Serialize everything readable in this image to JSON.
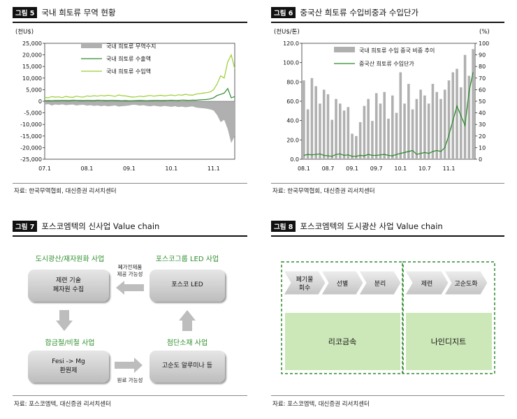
{
  "fig5": {
    "tag": "그림 5",
    "title": "국내 희토류 무역 현황",
    "unit": "(천U$)",
    "source": "자료: 한국무역협회, 대신증권 리서치센터",
    "colors": {
      "balance": "#b0b0b0",
      "export": "#2e8b2e",
      "import": "#9acd32"
    },
    "chart_data": {
      "type": "line",
      "ylim": [
        -25000,
        25000
      ],
      "yticks": [
        "25,000",
        "20,000",
        "15,000",
        "10,000",
        "5,000",
        "0",
        "-5,000",
        "-10,000",
        "-15,000",
        "-20,000",
        "-25,000"
      ],
      "xticks": [
        "07.1",
        "08.1",
        "09.1",
        "10.1",
        "11.1"
      ],
      "x": [
        "07.1",
        "07.2",
        "07.3",
        "07.4",
        "07.5",
        "07.6",
        "07.7",
        "07.8",
        "07.9",
        "07.10",
        "07.11",
        "07.12",
        "08.1",
        "08.2",
        "08.3",
        "08.4",
        "08.5",
        "08.6",
        "08.7",
        "08.8",
        "08.9",
        "08.10",
        "08.11",
        "08.12",
        "09.1",
        "09.2",
        "09.3",
        "09.4",
        "09.5",
        "09.6",
        "09.7",
        "09.8",
        "09.9",
        "09.10",
        "09.11",
        "09.12",
        "10.1",
        "10.2",
        "10.3",
        "10.4",
        "10.5",
        "10.6",
        "10.7",
        "10.8",
        "10.9",
        "10.10",
        "10.11",
        "10.12",
        "11.1",
        "11.2",
        "11.3",
        "11.4",
        "11.5",
        "11.6",
        "11.7"
      ],
      "series": [
        {
          "name": "국내 희토류 무역수지",
          "kind": "area",
          "values": [
            -1500,
            -1200,
            -1800,
            -1400,
            -1600,
            -1300,
            -1700,
            -1500,
            -1400,
            -1800,
            -1600,
            -1500,
            -1900,
            -1700,
            -2000,
            -1800,
            -2100,
            -1900,
            -2200,
            -2000,
            -1800,
            -2300,
            -2100,
            -2000,
            -1800,
            -1500,
            -1600,
            -1900,
            -1700,
            -2000,
            -2200,
            -1900,
            -2100,
            -2300,
            -2000,
            -2200,
            -2400,
            -2100,
            -2500,
            -2300,
            -2600,
            -2400,
            -2200,
            -2700,
            -2900,
            -3000,
            -3200,
            -3500,
            -4000,
            -6000,
            -9000,
            -8000,
            -12000,
            -18000,
            -15000
          ]
        },
        {
          "name": "국내 희토류 수출액",
          "kind": "line",
          "values": [
            200,
            300,
            250,
            350,
            300,
            400,
            350,
            300,
            450,
            400,
            350,
            300,
            400,
            350,
            300,
            450,
            400,
            350,
            300,
            400,
            350,
            300,
            250,
            300,
            200,
            250,
            300,
            350,
            300,
            250,
            300,
            350,
            400,
            300,
            350,
            400,
            450,
            400,
            350,
            500,
            450,
            400,
            500,
            450,
            600,
            700,
            800,
            1000,
            1500,
            2500,
            3000,
            3500,
            5500,
            1500,
            2000
          ]
        },
        {
          "name": "국내 희토류 수입액",
          "kind": "line",
          "values": [
            1700,
            1500,
            2000,
            1800,
            1900,
            1600,
            2100,
            1800,
            1700,
            2200,
            1900,
            1800,
            2300,
            2100,
            2400,
            2200,
            2500,
            2300,
            2600,
            2400,
            2100,
            2700,
            2400,
            2300,
            2000,
            1800,
            1900,
            2200,
            2000,
            2300,
            2500,
            2200,
            2400,
            2600,
            2300,
            2500,
            2700,
            2400,
            2800,
            2600,
            3000,
            2700,
            2600,
            3100,
            3300,
            3500,
            3700,
            4000,
            5000,
            7500,
            11000,
            10000,
            17000,
            20000,
            14000
          ]
        }
      ]
    }
  },
  "fig6": {
    "tag": "그림 6",
    "title": "중국산 희토류 수입비중과 수입단가",
    "unit_left": "(천U$/톤)",
    "unit_right": "(%)",
    "source": "자료: 한국무역협회, 대신증권 리서치센터",
    "colors": {
      "share": "#b0b0b0",
      "price": "#2e8b2e"
    },
    "chart_data": {
      "type": "bar",
      "ylim_left": [
        0,
        120
      ],
      "ylim_right": [
        0,
        100
      ],
      "yticks_left": [
        "120.0",
        "100.0",
        "80.0",
        "60.0",
        "40.0",
        "20.0",
        "0.0"
      ],
      "yticks_right": [
        "100",
        "90",
        "80",
        "70",
        "60",
        "50",
        "40",
        "30",
        "20",
        "10",
        "0"
      ],
      "xticks": [
        "08.1",
        "08.7",
        "09.1",
        "09.7",
        "10.1",
        "10.7",
        "11.1"
      ],
      "x": [
        "08.1",
        "08.2",
        "08.3",
        "08.4",
        "08.5",
        "08.6",
        "08.7",
        "08.8",
        "08.9",
        "08.10",
        "08.11",
        "08.12",
        "09.1",
        "09.2",
        "09.3",
        "09.4",
        "09.5",
        "09.6",
        "09.7",
        "09.8",
        "09.9",
        "09.10",
        "09.11",
        "09.12",
        "10.1",
        "10.2",
        "10.3",
        "10.4",
        "10.5",
        "10.6",
        "10.7",
        "10.8",
        "10.9",
        "10.10",
        "10.11",
        "10.12",
        "11.1",
        "11.2",
        "11.3",
        "11.4",
        "11.5",
        "11.6",
        "11.7"
      ],
      "series": [
        {
          "name": "국내 희토류 수입 중국 비중 추이",
          "axis": "right",
          "values": [
            68,
            43,
            70,
            63,
            48,
            60,
            56,
            34,
            52,
            48,
            42,
            45,
            22,
            20,
            32,
            46,
            52,
            33,
            57,
            48,
            58,
            35,
            55,
            40,
            75,
            48,
            65,
            43,
            52,
            60,
            55,
            48,
            65,
            58,
            52,
            60,
            68,
            75,
            78,
            62,
            90,
            72,
            95
          ]
        },
        {
          "name": "중국산 희토류 수입단가",
          "axis": "left",
          "values": [
            4,
            5,
            4.5,
            5,
            5.5,
            4,
            3.5,
            3,
            5,
            5.5,
            4,
            4.5,
            3,
            3,
            4,
            3.5,
            5,
            4,
            4,
            4.5,
            5,
            4,
            3.5,
            5,
            6,
            7,
            8,
            9,
            5,
            6,
            7,
            6,
            8,
            9,
            8,
            12,
            25,
            40,
            55,
            45,
            35,
            70,
            90
          ]
        }
      ]
    }
  },
  "fig7": {
    "tag": "그림 7",
    "title": "포스코엠텍의 신사업 Value chain",
    "source": "자료: 포스코엠텍, 대신증권 리서치센터",
    "heads": {
      "top_left": "도시광산/재자원화 사업",
      "top_right": "포스코그룹 LED 사업",
      "bottom_left": "합금철/비철 사업",
      "bottom_right": "첨단소재 사업"
    },
    "boxes": {
      "top_left_line1": "제련 기술",
      "top_left_line2": "폐자원 수집",
      "top_right": "포스코 LED",
      "bottom_left_line1": "Fesi -> Mg",
      "bottom_left_line2": "환원제",
      "bottom_right": "고순도 알루미나 등"
    },
    "notes": {
      "top_line1": "폐가전제품",
      "top_line2": "제공 가능성",
      "bottom": "원료 가능성"
    }
  },
  "fig8": {
    "tag": "그림 8",
    "title": "포스코엠텍의 도시광산 사업 Value chain",
    "source": "자료: 포스코엠텍, 대신증권 리서치센터",
    "steps_left": [
      "폐기물\n회수",
      "선별",
      "분리"
    ],
    "steps_right": [
      "제련",
      "고순도화"
    ],
    "company_left": "리코금속",
    "company_right": "나인디지트",
    "colors": {
      "green_box": "#cde8b8",
      "dash": "#2e8b2e"
    }
  }
}
